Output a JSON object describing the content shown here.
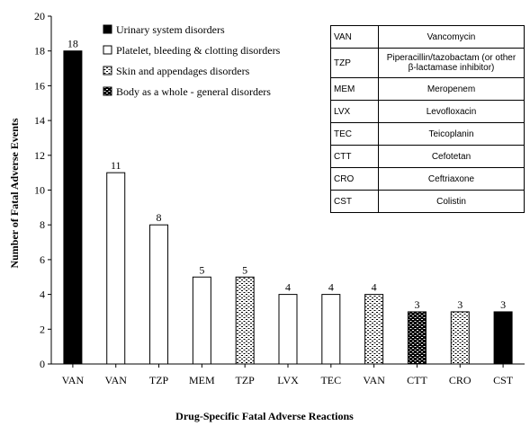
{
  "chart_data": {
    "type": "bar",
    "title": "",
    "xlabel": "Drug-Specific Fatal Adverse Reactions",
    "ylabel": "Number of Fatal Adverse Events",
    "ylim": [
      0,
      20
    ],
    "yticks": [
      "0",
      "2",
      "4",
      "6",
      "8",
      "10",
      "12",
      "14",
      "16",
      "18",
      "20"
    ],
    "grid": false,
    "categories": [
      "VAN",
      "VAN",
      "TZP",
      "MEM",
      "TZP",
      "LVX",
      "TEC",
      "VAN",
      "CTT",
      "CRO",
      "CST"
    ],
    "values": [
      18,
      11,
      8,
      5,
      5,
      4,
      4,
      4,
      3,
      3,
      3
    ],
    "value_labels": [
      "18",
      "11",
      "8",
      "5",
      "5",
      "4",
      "4",
      "4",
      "3",
      "3",
      "3"
    ],
    "bar_class": [
      "Urinary system disorders",
      "Platelet, bleeding & clotting disorders",
      "Platelet, bleeding & clotting disorders",
      "Platelet, bleeding & clotting disorders",
      "Skin and appendages disorders",
      "Platelet, bleeding & clotting disorders",
      "Platelet, bleeding & clotting disorders",
      "Skin and appendages disorders",
      "Body as a whole - general disorders",
      "Skin and appendages disorders",
      "Urinary system disorders"
    ],
    "legend_position": "top-left",
    "legend": [
      {
        "label": "Urinary system disorders",
        "fill": "solid",
        "color": "#000000"
      },
      {
        "label": "Platelet, bleeding & clotting disorders",
        "fill": "hollow",
        "color": "#ffffff"
      },
      {
        "label": "Skin and appendages disorders",
        "fill": "dotted",
        "color": "#ffffff"
      },
      {
        "label": "Body as a whole - general disorders",
        "fill": "dark-pattern",
        "color": "#000000"
      }
    ],
    "abbreviations": [
      {
        "abbr": "VAN",
        "name": "Vancomycin"
      },
      {
        "abbr": "TZP",
        "name": "Piperacillin/tazobactam (or other β-lactamase inhibitor)"
      },
      {
        "abbr": "MEM",
        "name": "Meropenem"
      },
      {
        "abbr": "LVX",
        "name": "Levofloxacin"
      },
      {
        "abbr": "TEC",
        "name": "Teicoplanin"
      },
      {
        "abbr": "CTT",
        "name": "Cefotetan"
      },
      {
        "abbr": "CRO",
        "name": "Ceftriaxone"
      },
      {
        "abbr": "CST",
        "name": "Colistin"
      }
    ]
  }
}
